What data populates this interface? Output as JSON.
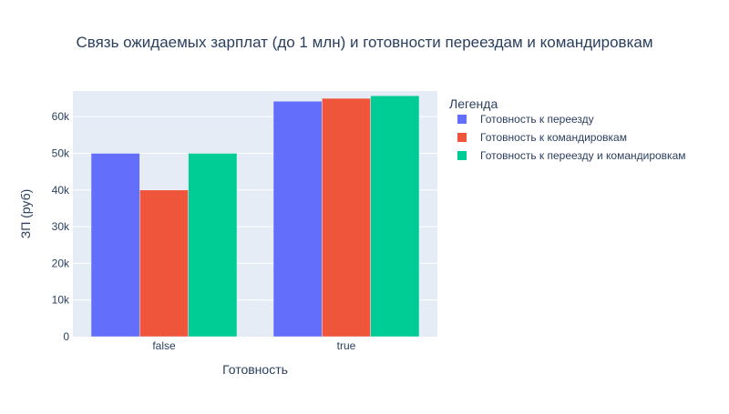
{
  "chart_data": {
    "type": "bar",
    "title": "Связь ожидаемых зарплат (до 1 млн) и готовности  переездам и командировкам",
    "xlabel": "Готовность",
    "ylabel": "ЗП (руб)",
    "categories": [
      "false",
      "true"
    ],
    "ylim": [
      0,
      67000
    ],
    "yticks": [
      0,
      10000,
      20000,
      30000,
      40000,
      50000,
      60000
    ],
    "ytick_labels": [
      "0",
      "10k",
      "20k",
      "30k",
      "40k",
      "50k",
      "60k"
    ],
    "grid": true,
    "legend_title": "Легенда",
    "legend_position": "right",
    "series": [
      {
        "name": "Готовность к переезду",
        "color": "#636efa",
        "values": [
          50000,
          64200
        ]
      },
      {
        "name": "Готовность к командировкам",
        "color": "#ef553b",
        "values": [
          40000,
          65000
        ]
      },
      {
        "name": "Готовность к переезду и командировкам",
        "color": "#00cc96",
        "values": [
          50000,
          65700
        ]
      }
    ],
    "plot_background": "#e5ecf6"
  }
}
